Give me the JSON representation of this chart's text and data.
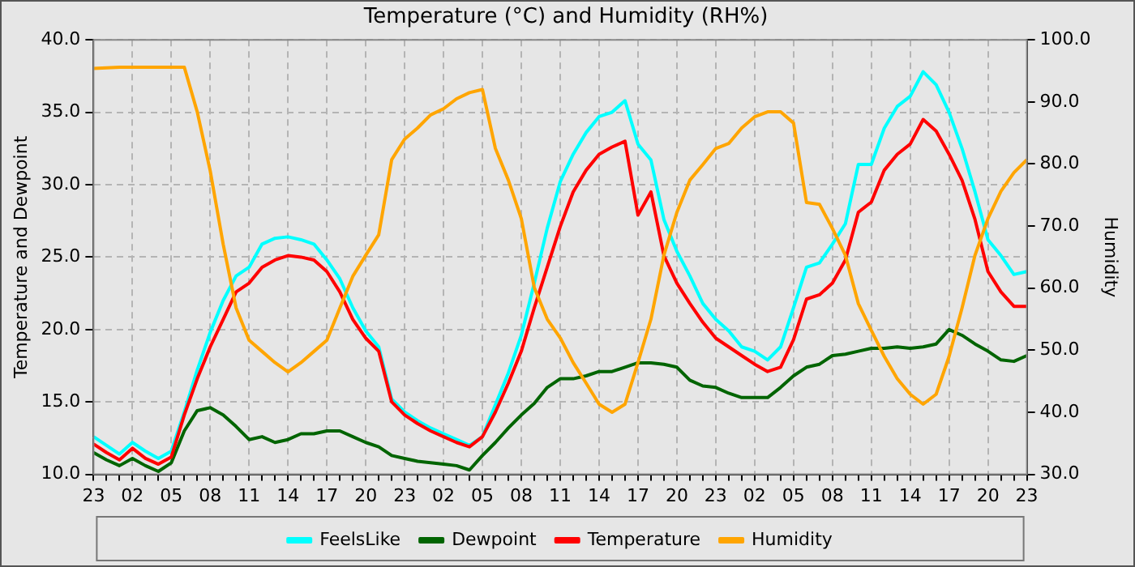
{
  "chart_data": {
    "type": "line",
    "title": "Temperature (°C) and Humidity (RH%)",
    "ylabel": "Temperature and Dewpoint",
    "y2label": "Humidity",
    "categories": [
      "23",
      null,
      null,
      "02",
      null,
      null,
      "05",
      null,
      null,
      "08",
      null,
      null,
      "11",
      null,
      null,
      "14",
      null,
      null,
      "17",
      null,
      null,
      "20",
      null,
      null,
      "23",
      null,
      null,
      "02",
      null,
      null,
      "05",
      null,
      null,
      "08",
      null,
      null,
      "11",
      null,
      null,
      "14",
      null,
      null,
      "17",
      null,
      null,
      "20",
      null,
      null,
      "23",
      null,
      null,
      "02",
      null,
      null,
      "05",
      null,
      null,
      "08",
      null,
      null,
      "11",
      null,
      null,
      "14",
      null,
      null,
      "17",
      null,
      null,
      "20",
      null,
      null,
      "23"
    ],
    "ylim": [
      10,
      40
    ],
    "yticks": [
      {
        "value": 10,
        "label": "10.0"
      },
      {
        "value": 15,
        "label": "15.0"
      },
      {
        "value": 20,
        "label": "20.0"
      },
      {
        "value": 25,
        "label": "25.0"
      },
      {
        "value": 30,
        "label": "30.0"
      },
      {
        "value": 35,
        "label": "35.0"
      },
      {
        "value": 40,
        "label": "40.0"
      }
    ],
    "y2lim": [
      30,
      100
    ],
    "y2ticks": [
      {
        "value": 30,
        "label": "30.0"
      },
      {
        "value": 40,
        "label": "40.0"
      },
      {
        "value": 50,
        "label": "50.0"
      },
      {
        "value": 60,
        "label": "60.0"
      },
      {
        "value": 70,
        "label": "70.0"
      },
      {
        "value": 80,
        "label": "80.0"
      },
      {
        "value": 90,
        "label": "90.0"
      },
      {
        "value": 100,
        "label": "100.0"
      }
    ],
    "grid": true,
    "legend": "bottom",
    "marker": "none",
    "line_style": "solid",
    "series": [
      {
        "name": "FeelsLike",
        "color": "#00ffff",
        "values": [
          12.6,
          12.0,
          11.4,
          12.2,
          11.6,
          11.1,
          11.6,
          14.3,
          17.2,
          19.8,
          22.0,
          23.7,
          24.3,
          25.9,
          26.3,
          26.4,
          26.2,
          25.9,
          24.8,
          23.5,
          21.5,
          19.9,
          18.8,
          15.2,
          14.3,
          13.7,
          13.2,
          12.8,
          12.4,
          12.0,
          12.6,
          14.8,
          17.0,
          19.6,
          23.2,
          27.0,
          30.2,
          32.1,
          33.6,
          34.7,
          35.0,
          35.8,
          32.8,
          31.7,
          27.6,
          25.4,
          23.7,
          21.8,
          20.7,
          19.9,
          18.8,
          18.5,
          17.9,
          18.8,
          21.5,
          24.3,
          24.6,
          25.9,
          27.3,
          31.4,
          31.4,
          33.9,
          35.4,
          36.1,
          37.8,
          36.9,
          35.0,
          32.5,
          29.5,
          26.2,
          25.1,
          23.8,
          24.0
        ]
      },
      {
        "name": "Dewpoint",
        "color": "#006400",
        "values": [
          11.5,
          11.0,
          10.6,
          11.1,
          10.6,
          10.2,
          10.8,
          13.0,
          14.4,
          14.6,
          14.1,
          13.3,
          12.4,
          12.6,
          12.2,
          12.4,
          12.8,
          12.8,
          13.0,
          13.0,
          12.6,
          12.2,
          11.9,
          11.3,
          11.1,
          10.9,
          10.8,
          10.7,
          10.6,
          10.3,
          11.3,
          12.2,
          13.2,
          14.1,
          14.9,
          16.0,
          16.6,
          16.6,
          16.8,
          17.1,
          17.1,
          17.4,
          17.7,
          17.7,
          17.6,
          17.4,
          16.5,
          16.1,
          16.0,
          15.6,
          15.3,
          15.3,
          15.3,
          16.0,
          16.8,
          17.4,
          17.6,
          18.2,
          18.3,
          18.5,
          18.7,
          18.7,
          18.8,
          18.7,
          18.8,
          19.0,
          20.0,
          19.6,
          19.0,
          18.5,
          17.9,
          17.8,
          18.2
        ]
      },
      {
        "name": "Temperature",
        "color": "#ff0000",
        "values": [
          12.1,
          11.5,
          11.0,
          11.8,
          11.1,
          10.7,
          11.2,
          14.1,
          16.6,
          18.8,
          20.7,
          22.6,
          23.2,
          24.3,
          24.8,
          25.1,
          25.0,
          24.8,
          24.0,
          22.6,
          20.7,
          19.4,
          18.5,
          15.0,
          14.1,
          13.5,
          13.0,
          12.6,
          12.2,
          11.9,
          12.6,
          14.3,
          16.3,
          18.5,
          21.5,
          24.3,
          27.1,
          29.5,
          31.0,
          32.1,
          32.6,
          33.0,
          27.9,
          29.5,
          25.1,
          23.2,
          21.8,
          20.5,
          19.4,
          18.8,
          18.2,
          17.6,
          17.1,
          17.4,
          19.3,
          22.1,
          22.4,
          23.2,
          24.8,
          28.1,
          28.8,
          31.0,
          32.1,
          32.8,
          34.5,
          33.7,
          32.1,
          30.3,
          27.6,
          24.0,
          22.6,
          21.6,
          21.6
        ]
      },
      {
        "name": "Humidity",
        "color": "#ffa500",
        "axis": "y2",
        "values": [
          95.4,
          95.5,
          95.6,
          95.6,
          95.6,
          95.6,
          95.6,
          95.6,
          88.4,
          78.9,
          67.1,
          56.8,
          51.6,
          49.8,
          48.0,
          46.5,
          48.0,
          49.8,
          51.6,
          56.8,
          61.9,
          65.3,
          68.6,
          80.7,
          84.0,
          85.8,
          87.9,
          88.9,
          90.5,
          91.5,
          92.0,
          82.5,
          77.4,
          71.2,
          60.1,
          55.0,
          52.0,
          48.0,
          44.7,
          41.3,
          40.0,
          41.3,
          48.0,
          55.0,
          65.3,
          72.2,
          77.4,
          79.9,
          82.5,
          83.3,
          85.8,
          87.6,
          88.4,
          88.4,
          86.6,
          73.8,
          73.5,
          69.6,
          65.3,
          57.5,
          53.2,
          49.0,
          45.4,
          42.9,
          41.3,
          42.9,
          49.0,
          56.8,
          65.3,
          71.2,
          75.6,
          78.6,
          80.7
        ]
      }
    ]
  }
}
